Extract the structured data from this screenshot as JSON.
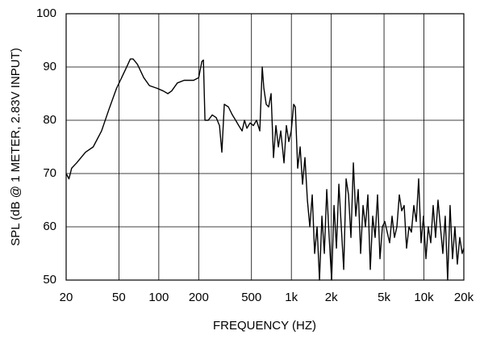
{
  "chart_data": {
    "type": "line",
    "xscale": "log",
    "grid": true,
    "xlabel": "FREQUENCY  (HZ)",
    "ylabel": "SPL (dB @ 1 METER, 2.83V INPUT)",
    "xlim": [
      20,
      20000
    ],
    "ylim": [
      50,
      100
    ],
    "xticks": [
      20,
      50,
      100,
      200,
      500,
      {
        "value": 1000,
        "label": "1k"
      },
      {
        "value": 2000,
        "label": "2k"
      },
      {
        "value": 5000,
        "label": "5k"
      },
      {
        "value": 10000,
        "label": "10k"
      },
      {
        "value": 20000,
        "label": "20k"
      }
    ],
    "yticks": [
      50,
      60,
      70,
      80,
      90,
      100
    ],
    "series": [
      {
        "color": "#000000",
        "x": [
          20,
          21,
          22,
          24,
          28,
          32,
          37,
          42,
          48,
          56,
          61,
          64,
          69,
          77,
          85,
          97,
          108,
          117,
          125,
          138,
          155,
          183,
          200,
          211,
          217,
          223,
          236,
          253,
          271,
          287,
          299,
          312,
          335,
          359,
          380,
          401,
          425,
          443,
          462,
          488,
          517,
          546,
          578,
          603,
          620,
          646,
          674,
          703,
          733,
          765,
          798,
          832,
          880,
          917,
          957,
          998,
          1041,
          1071,
          1116,
          1165,
          1214,
          1266,
          1321,
          1378,
          1437,
          1498,
          1563,
          1630,
          1700,
          1773,
          1849,
          1929,
          2012,
          2098,
          2188,
          2282,
          2380,
          2482,
          2588,
          2699,
          2815,
          2936,
          3062,
          3193,
          3330,
          3473,
          3622,
          3777,
          3939,
          4108,
          4284,
          4468,
          4660,
          4860,
          5068,
          5286,
          5512,
          5749,
          5995,
          6253,
          6521,
          6800,
          7092,
          7396,
          7714,
          8044,
          8390,
          8750,
          9125,
          9516,
          9924,
          10350,
          10790,
          11260,
          11740,
          12240,
          12770,
          13320,
          13890,
          14480,
          15100,
          15750,
          16430,
          17130,
          17870,
          18630,
          19430,
          20000
        ],
        "values": [
          70,
          69,
          71,
          72,
          74,
          75,
          78,
          82,
          86,
          89.5,
          91.5,
          91.5,
          90.5,
          88,
          86.5,
          86,
          85.5,
          85,
          85.5,
          87,
          87.5,
          87.5,
          88,
          91,
          91.3,
          80,
          80,
          81,
          80.5,
          79,
          74,
          83,
          82.5,
          81,
          80,
          79,
          78,
          80,
          78.5,
          79.5,
          79,
          80,
          78,
          90,
          86,
          83,
          82.5,
          85,
          73,
          79,
          75,
          78,
          72,
          79,
          76,
          78,
          83,
          82.5,
          71,
          75,
          68,
          73,
          65,
          60,
          66,
          55,
          60,
          50,
          62,
          55,
          67,
          58,
          50,
          64,
          56,
          68,
          60,
          52,
          69,
          66,
          58,
          72,
          62,
          67,
          55,
          64,
          60,
          66,
          52,
          62,
          58,
          66,
          54,
          60,
          61,
          59,
          57,
          62,
          58,
          60,
          66,
          63,
          64,
          56,
          60,
          59,
          64,
          61,
          69,
          57,
          62,
          54,
          60,
          57,
          64,
          58,
          65,
          60,
          55,
          62,
          50,
          64,
          54,
          60,
          53,
          58,
          55,
          56
        ]
      }
    ]
  }
}
